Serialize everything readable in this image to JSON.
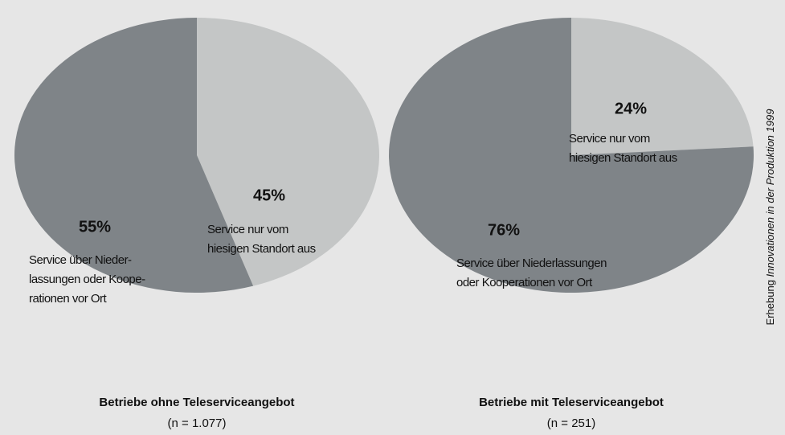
{
  "chart_data": [
    {
      "type": "pie",
      "title": "Betriebe ohne Teleserviceangebot",
      "subtitle": "(n = 1.077)",
      "categories": [
        "Service nur vom\nhiesigen Standort aus",
        "Service über Nieder-\nlassungen oder Koope-\nrationen vor Ort"
      ],
      "values": [
        45,
        55
      ],
      "value_labels": [
        "45%",
        "55%"
      ],
      "colors": [
        "#c4c6c6",
        "#7f8488"
      ]
    },
    {
      "type": "pie",
      "title": "Betriebe mit Teleserviceangebot",
      "subtitle": "(n = 251)",
      "categories": [
        "Service nur vom\nhiesigen Standort aus",
        "Service über Niederlassungen\noder Kooperationen vor Ort"
      ],
      "values": [
        24,
        76
      ],
      "value_labels": [
        "24%",
        "76%"
      ],
      "colors": [
        "#c4c6c6",
        "#7f8488"
      ]
    }
  ],
  "source": {
    "prefix": "Erhebung",
    "italic": "Innovationen in der Produktion 1999"
  }
}
